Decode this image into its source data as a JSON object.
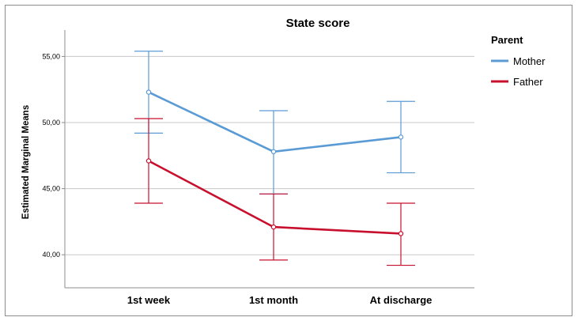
{
  "chart_data": {
    "type": "line",
    "title": "State score",
    "xlabel": "",
    "ylabel": "Estimated Marginal Means",
    "categories": [
      "1st week",
      "1st month",
      "At discharge"
    ],
    "ylim": [
      37.5,
      57.0
    ],
    "yticks": [
      40.0,
      45.0,
      50.0,
      55.0
    ],
    "ytick_labels": [
      "40,00",
      "45,00",
      "50,00",
      "55,00"
    ],
    "grid": true,
    "legend": {
      "title": "Parent",
      "placement": "right"
    },
    "series": [
      {
        "name": "Mother",
        "color": "#5b9bd5",
        "values": [
          52.3,
          47.8,
          48.9
        ],
        "error_low": [
          49.2,
          44.6,
          46.2
        ],
        "error_high": [
          55.4,
          50.9,
          51.6
        ]
      },
      {
        "name": "Father",
        "color": "#c8102e",
        "values": [
          47.1,
          42.1,
          41.6
        ],
        "error_low": [
          43.9,
          39.6,
          39.2
        ],
        "error_high": [
          50.3,
          44.6,
          43.9
        ]
      }
    ]
  }
}
